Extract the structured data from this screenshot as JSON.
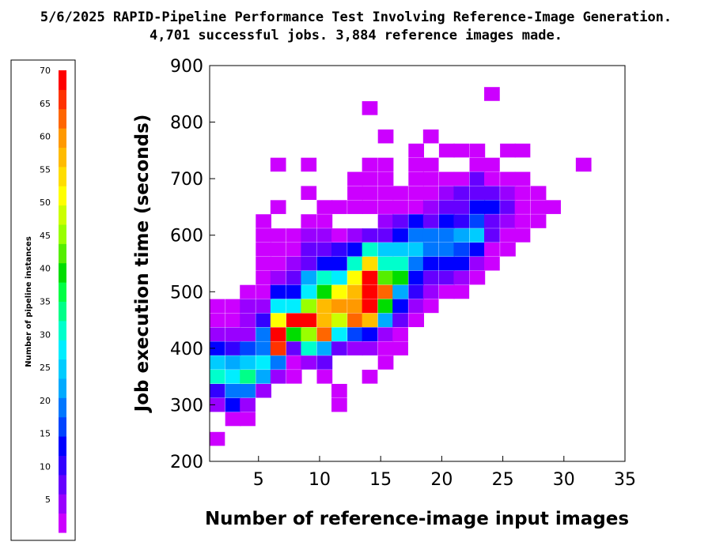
{
  "chart_data": {
    "type": "heatmap",
    "title": "5/6/2025 RAPID-Pipeline Performance Test Involving Reference-Image Generation.",
    "subtitle": "4,701 successful jobs.  3,884 reference images made.",
    "xlabel": "Number of reference-image input images",
    "ylabel": "Job execution time (seconds)",
    "xlim": [
      1,
      35
    ],
    "ylim": [
      200,
      900
    ],
    "xticks": [
      5,
      10,
      15,
      20,
      25,
      30,
      35
    ],
    "yticks": [
      200,
      300,
      400,
      500,
      600,
      700,
      800,
      900
    ],
    "bin_width_x": 1.25,
    "bin_height_y": 24,
    "grid": false,
    "colorbar": {
      "title": "Number of pipeline instances",
      "ticks": [
        5,
        10,
        15,
        20,
        25,
        30,
        35,
        40,
        45,
        50,
        55,
        60,
        65,
        70
      ],
      "range": [
        0,
        70
      ],
      "colors": [
        "#cc00ff",
        "#9900ff",
        "#6600ff",
        "#3300ff",
        "#0000ff",
        "#0044ff",
        "#0077ff",
        "#00aaff",
        "#00ccff",
        "#00eeff",
        "#00ffcc",
        "#00ff88",
        "#00ff44",
        "#00dd00",
        "#55ee00",
        "#99ff00",
        "#ccff00",
        "#ffff00",
        "#ffdd00",
        "#ffbb00",
        "#ff9900",
        "#ff6600",
        "#ff3300",
        "#ff0000"
      ]
    },
    "bins": [
      [
        1.6,
        240,
        1
      ],
      [
        1.6,
        300,
        4
      ],
      [
        1.6,
        325,
        10
      ],
      [
        1.6,
        350,
        30
      ],
      [
        1.6,
        375,
        25
      ],
      [
        1.6,
        400,
        12
      ],
      [
        1.6,
        425,
        3
      ],
      [
        1.6,
        450,
        1
      ],
      [
        1.6,
        475,
        1
      ],
      [
        2.9,
        275,
        1
      ],
      [
        2.9,
        300,
        12
      ],
      [
        2.9,
        325,
        18
      ],
      [
        2.9,
        350,
        27
      ],
      [
        2.9,
        375,
        22
      ],
      [
        2.9,
        400,
        10
      ],
      [
        2.9,
        425,
        3
      ],
      [
        2.9,
        450,
        2
      ],
      [
        2.9,
        475,
        1
      ],
      [
        4.1,
        275,
        1
      ],
      [
        4.1,
        300,
        5
      ],
      [
        4.1,
        325,
        20
      ],
      [
        4.1,
        350,
        34
      ],
      [
        4.1,
        375,
        26
      ],
      [
        4.1,
        400,
        15
      ],
      [
        4.1,
        425,
        4
      ],
      [
        4.1,
        450,
        3
      ],
      [
        4.1,
        475,
        3
      ],
      [
        4.1,
        500,
        1
      ],
      [
        5.4,
        325,
        3
      ],
      [
        5.4,
        350,
        22
      ],
      [
        5.4,
        375,
        28
      ],
      [
        5.4,
        400,
        18
      ],
      [
        5.4,
        425,
        20
      ],
      [
        5.4,
        450,
        10
      ],
      [
        5.4,
        475,
        4
      ],
      [
        5.4,
        500,
        2
      ],
      [
        5.4,
        525,
        1
      ],
      [
        5.4,
        550,
        1
      ],
      [
        5.4,
        575,
        1
      ],
      [
        5.4,
        600,
        1
      ],
      [
        5.4,
        625,
        1
      ],
      [
        6.6,
        350,
        4
      ],
      [
        6.6,
        375,
        20
      ],
      [
        6.6,
        400,
        66
      ],
      [
        6.6,
        425,
        68
      ],
      [
        6.6,
        450,
        50
      ],
      [
        6.6,
        475,
        28
      ],
      [
        6.6,
        500,
        12
      ],
      [
        6.6,
        525,
        3
      ],
      [
        6.6,
        550,
        2
      ],
      [
        6.6,
        575,
        1
      ],
      [
        6.6,
        600,
        1
      ],
      [
        6.6,
        650,
        1
      ],
      [
        6.6,
        725,
        1
      ],
      [
        7.9,
        350,
        1
      ],
      [
        7.9,
        375,
        2
      ],
      [
        7.9,
        400,
        6
      ],
      [
        7.9,
        425,
        38
      ],
      [
        7.9,
        450,
        68
      ],
      [
        7.9,
        475,
        28
      ],
      [
        7.9,
        500,
        14
      ],
      [
        7.9,
        525,
        8
      ],
      [
        7.9,
        550,
        3
      ],
      [
        7.9,
        575,
        2
      ],
      [
        7.9,
        600,
        2
      ],
      [
        9.1,
        375,
        4
      ],
      [
        9.1,
        400,
        30
      ],
      [
        9.1,
        425,
        44
      ],
      [
        9.1,
        450,
        68
      ],
      [
        9.1,
        475,
        44
      ],
      [
        9.1,
        500,
        27
      ],
      [
        9.1,
        525,
        22
      ],
      [
        9.1,
        550,
        8
      ],
      [
        9.1,
        575,
        6
      ],
      [
        9.1,
        600,
        4
      ],
      [
        9.1,
        625,
        2
      ],
      [
        9.1,
        675,
        1
      ],
      [
        9.1,
        725,
        1
      ],
      [
        10.4,
        350,
        1
      ],
      [
        10.4,
        375,
        8
      ],
      [
        10.4,
        400,
        22
      ],
      [
        10.4,
        425,
        62
      ],
      [
        10.4,
        450,
        56
      ],
      [
        10.4,
        475,
        56
      ],
      [
        10.4,
        500,
        38
      ],
      [
        10.4,
        525,
        32
      ],
      [
        10.4,
        550,
        12
      ],
      [
        10.4,
        575,
        8
      ],
      [
        10.4,
        600,
        4
      ],
      [
        10.4,
        625,
        2
      ],
      [
        10.4,
        650,
        1
      ],
      [
        11.6,
        300,
        1
      ],
      [
        11.6,
        325,
        1
      ],
      [
        11.6,
        400,
        8
      ],
      [
        11.6,
        425,
        28
      ],
      [
        11.6,
        450,
        48
      ],
      [
        11.6,
        475,
        60
      ],
      [
        11.6,
        500,
        50
      ],
      [
        11.6,
        525,
        28
      ],
      [
        11.6,
        550,
        14
      ],
      [
        11.6,
        575,
        10
      ],
      [
        11.6,
        600,
        2
      ],
      [
        11.6,
        650,
        1
      ],
      [
        12.9,
        400,
        5
      ],
      [
        12.9,
        425,
        15
      ],
      [
        12.9,
        450,
        62
      ],
      [
        12.9,
        475,
        60
      ],
      [
        12.9,
        500,
        56
      ],
      [
        12.9,
        525,
        50
      ],
      [
        12.9,
        550,
        30
      ],
      [
        12.9,
        575,
        14
      ],
      [
        12.9,
        600,
        4
      ],
      [
        12.9,
        650,
        2
      ],
      [
        12.9,
        675,
        2
      ],
      [
        12.9,
        700,
        1
      ],
      [
        14.1,
        350,
        1
      ],
      [
        14.1,
        400,
        4
      ],
      [
        14.1,
        425,
        14
      ],
      [
        14.1,
        450,
        58
      ],
      [
        14.1,
        475,
        70
      ],
      [
        14.1,
        500,
        69
      ],
      [
        14.1,
        525,
        69
      ],
      [
        14.1,
        550,
        54
      ],
      [
        14.1,
        575,
        30
      ],
      [
        14.1,
        600,
        8
      ],
      [
        14.1,
        650,
        2
      ],
      [
        14.1,
        675,
        1
      ],
      [
        14.1,
        700,
        1
      ],
      [
        14.1,
        725,
        1
      ],
      [
        14.1,
        825,
        1
      ],
      [
        15.4,
        375,
        1
      ],
      [
        15.4,
        400,
        2
      ],
      [
        15.4,
        425,
        4
      ],
      [
        15.4,
        450,
        22
      ],
      [
        15.4,
        475,
        38
      ],
      [
        15.4,
        500,
        64
      ],
      [
        15.4,
        525,
        42
      ],
      [
        15.4,
        550,
        30
      ],
      [
        15.4,
        575,
        24
      ],
      [
        15.4,
        600,
        6
      ],
      [
        15.4,
        625,
        4
      ],
      [
        15.4,
        650,
        1
      ],
      [
        15.4,
        675,
        1
      ],
      [
        15.4,
        700,
        1
      ],
      [
        15.4,
        725,
        1
      ],
      [
        15.4,
        775,
        1
      ],
      [
        16.6,
        400,
        1
      ],
      [
        16.6,
        425,
        2
      ],
      [
        16.6,
        450,
        6
      ],
      [
        16.6,
        475,
        12
      ],
      [
        16.6,
        500,
        22
      ],
      [
        16.6,
        525,
        40
      ],
      [
        16.6,
        550,
        30
      ],
      [
        16.6,
        575,
        26
      ],
      [
        16.6,
        600,
        14
      ],
      [
        16.6,
        625,
        6
      ],
      [
        16.6,
        650,
        2
      ],
      [
        16.6,
        675,
        1
      ],
      [
        17.9,
        450,
        1
      ],
      [
        17.9,
        475,
        4
      ],
      [
        17.9,
        500,
        10
      ],
      [
        17.9,
        525,
        12
      ],
      [
        17.9,
        550,
        20
      ],
      [
        17.9,
        575,
        26
      ],
      [
        17.9,
        600,
        18
      ],
      [
        17.9,
        625,
        12
      ],
      [
        17.9,
        650,
        2
      ],
      [
        17.9,
        675,
        1
      ],
      [
        17.9,
        700,
        1
      ],
      [
        17.9,
        725,
        1
      ],
      [
        17.9,
        750,
        1
      ],
      [
        19.1,
        475,
        2
      ],
      [
        19.1,
        500,
        4
      ],
      [
        19.1,
        525,
        8
      ],
      [
        19.1,
        550,
        12
      ],
      [
        19.1,
        575,
        20
      ],
      [
        19.1,
        600,
        18
      ],
      [
        19.1,
        625,
        8
      ],
      [
        19.1,
        650,
        3
      ],
      [
        19.1,
        675,
        1
      ],
      [
        19.1,
        700,
        1
      ],
      [
        19.1,
        725,
        1
      ],
      [
        19.1,
        775,
        1
      ],
      [
        20.4,
        500,
        2
      ],
      [
        20.4,
        525,
        6
      ],
      [
        20.4,
        550,
        12
      ],
      [
        20.4,
        575,
        18
      ],
      [
        20.4,
        600,
        18
      ],
      [
        20.4,
        625,
        12
      ],
      [
        20.4,
        650,
        6
      ],
      [
        20.4,
        675,
        4
      ],
      [
        20.4,
        700,
        1
      ],
      [
        20.4,
        750,
        1
      ],
      [
        21.6,
        500,
        1
      ],
      [
        21.6,
        525,
        4
      ],
      [
        21.6,
        550,
        12
      ],
      [
        21.6,
        575,
        16
      ],
      [
        21.6,
        600,
        22
      ],
      [
        21.6,
        625,
        10
      ],
      [
        21.6,
        650,
        8
      ],
      [
        21.6,
        675,
        6
      ],
      [
        21.6,
        700,
        1
      ],
      [
        21.6,
        750,
        1
      ],
      [
        22.9,
        525,
        2
      ],
      [
        22.9,
        550,
        3
      ],
      [
        22.9,
        575,
        12
      ],
      [
        22.9,
        600,
        24
      ],
      [
        22.9,
        625,
        16
      ],
      [
        22.9,
        650,
        12
      ],
      [
        22.9,
        675,
        8
      ],
      [
        22.9,
        700,
        6
      ],
      [
        22.9,
        725,
        2
      ],
      [
        22.9,
        750,
        1
      ],
      [
        24.1,
        550,
        1
      ],
      [
        24.1,
        575,
        2
      ],
      [
        24.1,
        600,
        6
      ],
      [
        24.1,
        625,
        8
      ],
      [
        24.1,
        650,
        12
      ],
      [
        24.1,
        675,
        8
      ],
      [
        24.1,
        700,
        2
      ],
      [
        24.1,
        725,
        1
      ],
      [
        24.1,
        850,
        1
      ],
      [
        25.4,
        575,
        1
      ],
      [
        25.4,
        600,
        2
      ],
      [
        25.4,
        625,
        4
      ],
      [
        25.4,
        650,
        6
      ],
      [
        25.4,
        675,
        4
      ],
      [
        25.4,
        700,
        2
      ],
      [
        25.4,
        750,
        1
      ],
      [
        26.6,
        600,
        1
      ],
      [
        26.6,
        625,
        2
      ],
      [
        26.6,
        650,
        2
      ],
      [
        26.6,
        675,
        1
      ],
      [
        26.6,
        700,
        1
      ],
      [
        26.6,
        750,
        1
      ],
      [
        27.9,
        625,
        1
      ],
      [
        27.9,
        650,
        1
      ],
      [
        27.9,
        675,
        1
      ],
      [
        29.1,
        650,
        1
      ],
      [
        31.6,
        725,
        1
      ]
    ]
  }
}
